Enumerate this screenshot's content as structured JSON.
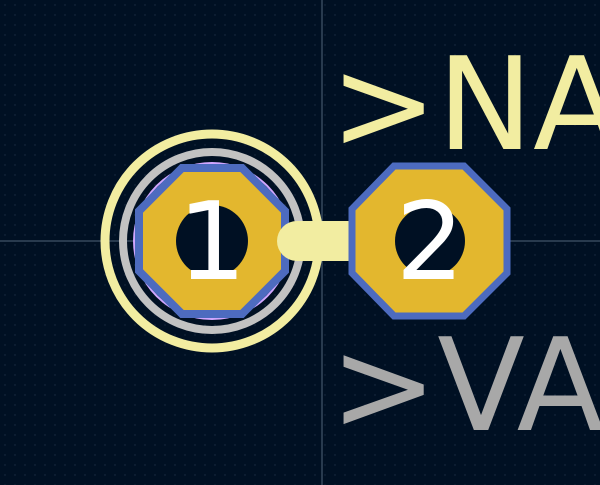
{
  "colors": {
    "background": "#001023",
    "grid_dot": "#1c2d45",
    "crosshair": "#51637a",
    "silkscreen": "#f2eda1",
    "courtyard": "#c2c2c2",
    "copper_pad": "#e3b72e",
    "pad_outline": "#4d6bbf",
    "fab": "#d0a6ff",
    "value_text": "#a8a8a8",
    "pad_number": "#ffffff"
  },
  "footprint": {
    "reference_text": ">NA",
    "value_text": ">VA",
    "pads": [
      {
        "number": "1",
        "shape": "octagon",
        "icon": "pad-1"
      },
      {
        "number": "2",
        "shape": "octagon",
        "icon": "pad-2"
      }
    ]
  }
}
